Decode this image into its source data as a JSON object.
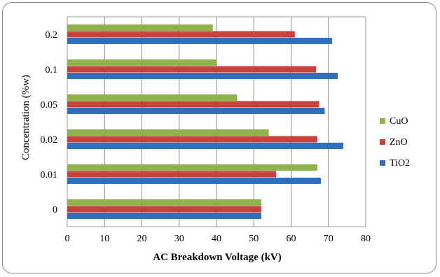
{
  "chart_data": {
    "type": "bar",
    "orientation": "horizontal",
    "categories": [
      "0",
      "0.01",
      "0.02",
      "0.05",
      "0.1",
      "0.2"
    ],
    "series": [
      {
        "name": "CuO",
        "color": "#8db34a",
        "values": [
          52,
          67,
          54,
          45.5,
          40,
          39
        ]
      },
      {
        "name": "ZnO",
        "color": "#c9413c",
        "values": [
          52,
          56,
          67,
          67.5,
          66.7,
          61
        ]
      },
      {
        "name": "TiO2",
        "color": "#2f6fbd",
        "values": [
          52,
          68,
          74,
          69,
          72.5,
          71
        ]
      }
    ],
    "xlabel": "AC Breakdown Voltage (kV)",
    "ylabel": "Concentration (%w)",
    "xlim": [
      0,
      80
    ],
    "xticks": [
      "0",
      "10",
      "20",
      "30",
      "40",
      "50",
      "60",
      "70",
      "80"
    ],
    "grid": "vertical",
    "legend": "right"
  }
}
